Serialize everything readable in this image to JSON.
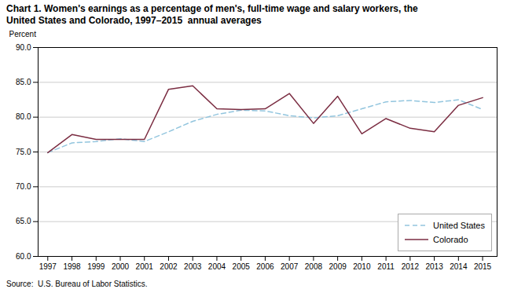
{
  "chart_data": {
    "type": "line",
    "title": "Chart 1. Women's earnings as a percentage of men's, full-time wage and salary workers, the\nUnited States and Colorado, 1997–2015  annual averages",
    "ylabel": "Percent",
    "source": "Source:  U.S. Bureau of Labor Statistics.",
    "x": [
      1997,
      1998,
      1999,
      2000,
      2001,
      2002,
      2003,
      2004,
      2005,
      2006,
      2007,
      2008,
      2009,
      2010,
      2011,
      2012,
      2013,
      2014,
      2015
    ],
    "series": [
      {
        "name": "United States",
        "color": "#92c5de",
        "line_style": "dashed",
        "values": [
          74.9,
          76.3,
          76.5,
          76.9,
          76.5,
          77.9,
          79.4,
          80.4,
          81.0,
          80.9,
          80.2,
          79.9,
          80.2,
          81.2,
          82.2,
          82.4,
          82.1,
          82.5,
          81.1
        ]
      },
      {
        "name": "Colorado",
        "color": "#7b2d42",
        "line_style": "solid",
        "values": [
          74.9,
          77.5,
          76.8,
          76.8,
          76.8,
          84.0,
          84.5,
          81.2,
          81.1,
          81.2,
          83.4,
          79.1,
          83.0,
          77.6,
          79.8,
          78.4,
          77.9,
          81.7,
          82.8
        ]
      }
    ],
    "xlim": [
      1996.6,
      2015.6
    ],
    "xticks": [
      1997,
      1998,
      1999,
      2000,
      2001,
      2002,
      2003,
      2004,
      2005,
      2006,
      2007,
      2008,
      2009,
      2010,
      2011,
      2012,
      2013,
      2014,
      2015
    ],
    "ylim": [
      60.0,
      90.0
    ],
    "yticks": [
      {
        "value": 60.0,
        "label": "60.0"
      },
      {
        "value": 65.0,
        "label": "65.0"
      },
      {
        "value": 70.0,
        "label": "70.0"
      },
      {
        "value": 75.0,
        "label": "75.0"
      },
      {
        "value": 80.0,
        "label": "80.0"
      },
      {
        "value": 85.0,
        "label": "85.0"
      },
      {
        "value": 90.0,
        "label": "90.0"
      }
    ],
    "grid": true,
    "legend": "lower right"
  }
}
